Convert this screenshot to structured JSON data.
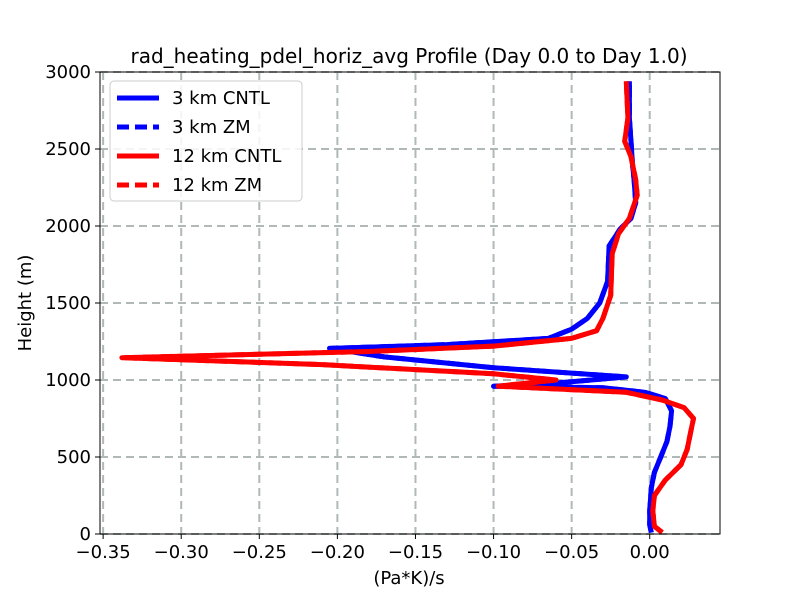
{
  "chart_data": {
    "type": "line",
    "title": "rad_heating_pdel_horiz_avg Profile (Day 0.0 to Day 1.0)",
    "xlabel": "(Pa*K)/s",
    "ylabel": "Height (m)",
    "xlim": [
      -0.352,
      0.045
    ],
    "ylim": [
      0,
      3000
    ],
    "xticks": [
      -0.35,
      -0.3,
      -0.25,
      -0.2,
      -0.15,
      -0.1,
      -0.05,
      0.0
    ],
    "xtick_labels": [
      "−0.35",
      "−0.30",
      "−0.25",
      "−0.20",
      "−0.15",
      "−0.10",
      "−0.05",
      "0.00"
    ],
    "yticks": [
      0,
      500,
      1000,
      1500,
      2000,
      2500,
      3000
    ],
    "ytick_labels": [
      "0",
      "500",
      "1000",
      "1500",
      "2000",
      "2500",
      "3000"
    ],
    "grid": true,
    "legend_position": "upper-left",
    "series": [
      {
        "name": "3 km CNTL",
        "color": "#0000ff",
        "style": "solid",
        "points": [
          [
            0.001,
            10
          ],
          [
            0.0,
            60
          ],
          [
            0.0,
            150
          ],
          [
            0.001,
            300
          ],
          [
            0.003,
            400
          ],
          [
            0.007,
            500
          ],
          [
            0.011,
            600
          ],
          [
            0.013,
            700
          ],
          [
            0.014,
            800
          ],
          [
            0.01,
            880
          ],
          [
            -0.003,
            920
          ],
          [
            -0.03,
            950
          ],
          [
            -0.1,
            960
          ],
          [
            -0.06,
            980
          ],
          [
            -0.015,
            1020
          ],
          [
            -0.1,
            1080
          ],
          [
            -0.17,
            1150
          ],
          [
            -0.205,
            1205
          ],
          [
            -0.13,
            1230
          ],
          [
            -0.065,
            1270
          ],
          [
            -0.05,
            1330
          ],
          [
            -0.04,
            1400
          ],
          [
            -0.032,
            1500
          ],
          [
            -0.027,
            1640
          ],
          [
            -0.026,
            1870
          ],
          [
            -0.019,
            1980
          ],
          [
            -0.012,
            2050
          ],
          [
            -0.009,
            2150
          ],
          [
            -0.01,
            2300
          ],
          [
            -0.011,
            2400
          ],
          [
            -0.012,
            2550
          ],
          [
            -0.013,
            2700
          ],
          [
            -0.013,
            2940
          ]
        ]
      },
      {
        "name": "3 km ZM",
        "color": "#0000ff",
        "style": "dashed",
        "points": [
          [
            0.001,
            10
          ],
          [
            0.0,
            60
          ],
          [
            0.0,
            150
          ],
          [
            0.001,
            300
          ],
          [
            0.003,
            400
          ],
          [
            0.007,
            500
          ],
          [
            0.011,
            600
          ],
          [
            0.013,
            700
          ],
          [
            0.014,
            800
          ],
          [
            0.01,
            880
          ],
          [
            -0.003,
            920
          ],
          [
            -0.03,
            950
          ],
          [
            -0.1,
            960
          ],
          [
            -0.06,
            980
          ],
          [
            -0.015,
            1020
          ],
          [
            -0.1,
            1080
          ],
          [
            -0.17,
            1150
          ],
          [
            -0.205,
            1205
          ],
          [
            -0.13,
            1230
          ],
          [
            -0.065,
            1270
          ],
          [
            -0.05,
            1330
          ],
          [
            -0.04,
            1400
          ],
          [
            -0.032,
            1500
          ],
          [
            -0.027,
            1640
          ],
          [
            -0.026,
            1870
          ],
          [
            -0.019,
            1980
          ],
          [
            -0.012,
            2050
          ],
          [
            -0.009,
            2150
          ],
          [
            -0.01,
            2300
          ],
          [
            -0.011,
            2400
          ],
          [
            -0.012,
            2550
          ],
          [
            -0.013,
            2700
          ],
          [
            -0.013,
            2940
          ]
        ]
      },
      {
        "name": "12 km CNTL",
        "color": "#ff0000",
        "style": "solid",
        "points": [
          [
            0.008,
            10
          ],
          [
            0.003,
            50
          ],
          [
            0.002,
            150
          ],
          [
            0.003,
            250
          ],
          [
            0.01,
            350
          ],
          [
            0.02,
            450
          ],
          [
            0.024,
            550
          ],
          [
            0.026,
            650
          ],
          [
            0.028,
            750
          ],
          [
            0.022,
            820
          ],
          [
            0.008,
            870
          ],
          [
            -0.015,
            920
          ],
          [
            -0.097,
            960
          ],
          [
            -0.06,
            1000
          ],
          [
            -0.1,
            1040
          ],
          [
            -0.21,
            1100
          ],
          [
            -0.338,
            1145
          ],
          [
            -0.18,
            1185
          ],
          [
            -0.1,
            1220
          ],
          [
            -0.05,
            1270
          ],
          [
            -0.034,
            1320
          ],
          [
            -0.03,
            1400
          ],
          [
            -0.025,
            1550
          ],
          [
            -0.024,
            1820
          ],
          [
            -0.02,
            1950
          ],
          [
            -0.013,
            2050
          ],
          [
            -0.008,
            2200
          ],
          [
            -0.009,
            2300
          ],
          [
            -0.012,
            2450
          ],
          [
            -0.016,
            2550
          ],
          [
            -0.014,
            2700
          ],
          [
            -0.015,
            2940
          ]
        ]
      },
      {
        "name": "12 km ZM",
        "color": "#ff0000",
        "style": "dashed",
        "points": [
          [
            0.008,
            10
          ],
          [
            0.003,
            50
          ],
          [
            0.002,
            150
          ],
          [
            0.003,
            250
          ],
          [
            0.01,
            350
          ],
          [
            0.02,
            450
          ],
          [
            0.024,
            550
          ],
          [
            0.026,
            650
          ],
          [
            0.028,
            750
          ],
          [
            0.022,
            820
          ],
          [
            0.008,
            870
          ],
          [
            -0.015,
            920
          ],
          [
            -0.097,
            960
          ],
          [
            -0.06,
            1000
          ],
          [
            -0.1,
            1040
          ],
          [
            -0.21,
            1100
          ],
          [
            -0.338,
            1145
          ],
          [
            -0.18,
            1185
          ],
          [
            -0.1,
            1220
          ],
          [
            -0.05,
            1270
          ],
          [
            -0.034,
            1320
          ],
          [
            -0.03,
            1400
          ],
          [
            -0.025,
            1550
          ],
          [
            -0.024,
            1820
          ],
          [
            -0.02,
            1950
          ],
          [
            -0.013,
            2050
          ],
          [
            -0.008,
            2200
          ],
          [
            -0.009,
            2300
          ],
          [
            -0.012,
            2450
          ],
          [
            -0.016,
            2550
          ],
          [
            -0.014,
            2700
          ],
          [
            -0.015,
            2940
          ]
        ]
      }
    ]
  }
}
